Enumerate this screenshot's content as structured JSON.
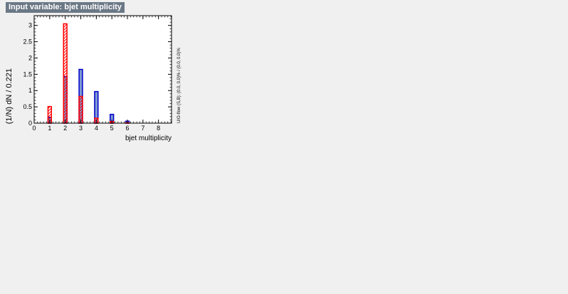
{
  "chart_data": {
    "type": "bar",
    "title": "Input variable: bjet multiplicity",
    "xlabel": "bjet multiplicity",
    "ylabel": "(1/N) dN / 0.221",
    "side_label": "U/O-flow (S,B): (0.0, 0.0)% / (0.0, 0.0)%",
    "xlim": [
      0,
      8.84
    ],
    "ylim": [
      0,
      3.3
    ],
    "x_major_ticks": [
      0,
      1,
      2,
      3,
      4,
      5,
      6,
      7,
      8
    ],
    "x_minor_step": 0.2,
    "y_major_ticks": [
      0,
      0.5,
      1,
      1.5,
      2,
      2.5,
      3
    ],
    "y_tick_labels": [
      "0",
      "0.5",
      "1",
      "1.5",
      "2",
      "2.5",
      "3"
    ],
    "y_minor_step": 0.1,
    "bin_width": 0.221,
    "grid": false,
    "series": [
      {
        "role": "signal",
        "color": "#0000cc",
        "fill": "#7d99d1",
        "points": [
          {
            "x": 1,
            "y": 0.18
          },
          {
            "x": 2,
            "y": 1.43
          },
          {
            "x": 3,
            "y": 1.65
          },
          {
            "x": 4,
            "y": 0.97
          },
          {
            "x": 5,
            "y": 0.27
          },
          {
            "x": 6,
            "y": 0.06
          }
        ]
      },
      {
        "role": "background",
        "color": "#ff0000",
        "hatch": "#ff0000",
        "points": [
          {
            "x": 1,
            "y": 0.51
          },
          {
            "x": 2,
            "y": 3.05
          },
          {
            "x": 3,
            "y": 0.82
          },
          {
            "x": 4,
            "y": 0.15
          },
          {
            "x": 5,
            "y": 0.05
          },
          {
            "x": 6,
            "y": 0.01
          }
        ]
      }
    ]
  }
}
